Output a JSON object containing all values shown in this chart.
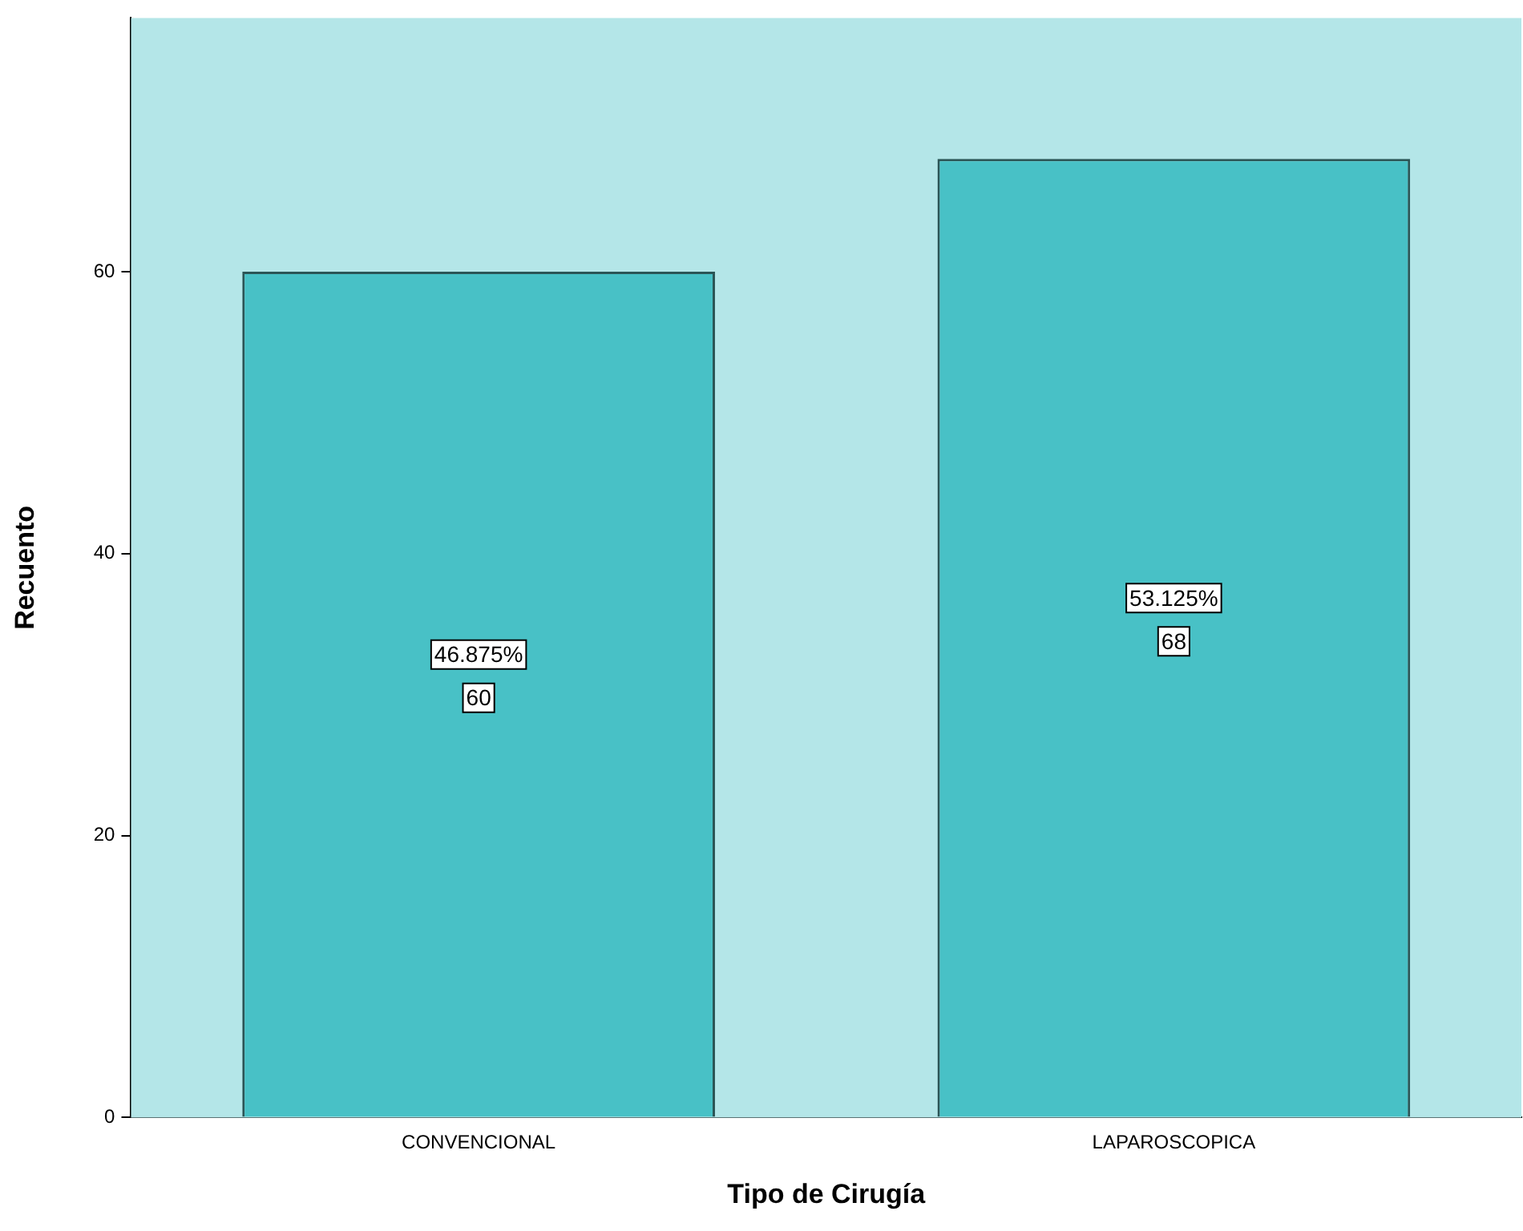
{
  "chart_data": {
    "type": "bar",
    "xlabel": "Tipo de Cirugía",
    "ylabel": "Recuento",
    "categories": [
      "CONVENCIONAL",
      "LAPAROSCOPICA"
    ],
    "values": [
      60,
      68
    ],
    "color": "#48c1c6",
    "ylim": [
      0,
      78
    ],
    "bands": [
      {
        "axis": "y",
        "from": 0,
        "to": 78,
        "color": "#b4e6e8"
      }
    ],
    "yticks": [
      0,
      20,
      40,
      60
    ],
    "grid": false,
    "legend": false,
    "data_labels": true,
    "annotations": [
      "46.875%",
      "53.125%"
    ]
  }
}
